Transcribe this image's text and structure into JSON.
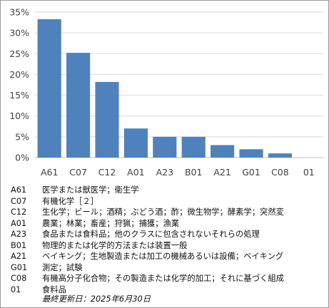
{
  "chart_data": {
    "type": "bar",
    "categories": [
      "A61",
      "C07",
      "C12",
      "A01",
      "A23",
      "B01",
      "A21",
      "G01",
      "C08",
      "01"
    ],
    "values": [
      33.3,
      25.2,
      18.2,
      7.0,
      5.0,
      5.0,
      3.0,
      2.0,
      1.0,
      0
    ],
    "ylim": [
      0,
      35
    ],
    "yticks": [
      "0%",
      "5%",
      "10%",
      "15%",
      "20%",
      "25%",
      "30%",
      "35%"
    ],
    "grid": true,
    "bar_color": "#4f81bd"
  },
  "legend": [
    {
      "code": "A61",
      "desc": "医学または獣医学；衛生学"
    },
    {
      "code": "C07",
      "desc": "有機化学［２］"
    },
    {
      "code": "C12",
      "desc": "生化学；ビール；酒精；ぶどう酒；酢；微生物学；酵素学；突然変"
    },
    {
      "code": "A01",
      "desc": "農業；林業；畜産；狩猟；捕獲；漁業"
    },
    {
      "code": "A23",
      "desc": "食品または食料品；他のクラスに包含されないそれらの処理"
    },
    {
      "code": "B01",
      "desc": "物理的または化学的方法または装置一般"
    },
    {
      "code": "A21",
      "desc": "ベイキング；生地製造または加工の機械あるいは設備；ベイキング"
    },
    {
      "code": "G01",
      "desc": "測定；試験"
    },
    {
      "code": "C08",
      "desc": "有機高分子化合物；その製造または化学的加工；それに基づく組成"
    },
    {
      "code": "01",
      "desc": "食料品"
    }
  ],
  "footer": "最終更新日：2025年6月30日"
}
